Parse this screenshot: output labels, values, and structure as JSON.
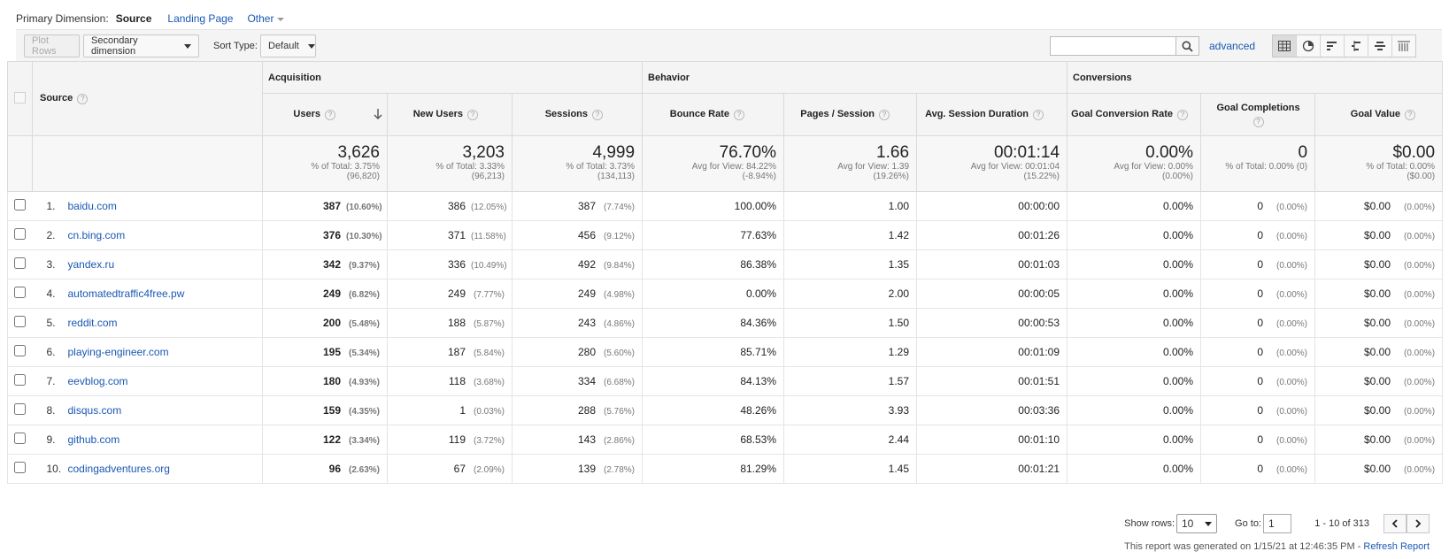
{
  "dimension": {
    "label": "Primary Dimension:",
    "current": "Source",
    "options": [
      "Landing Page",
      "Other"
    ]
  },
  "toolbar": {
    "plot_rows": "Plot Rows",
    "secondary_dimension": "Secondary dimension",
    "sort_type_label": "Sort Type:",
    "sort_type_value": "Default",
    "search_value": "",
    "advanced": "advanced"
  },
  "table": {
    "source_header": "Source",
    "groups": {
      "acquisition": "Acquisition",
      "behavior": "Behavior",
      "conversions": "Conversions"
    },
    "metrics": {
      "users": "Users",
      "new_users": "New Users",
      "sessions": "Sessions",
      "bounce_rate": "Bounce Rate",
      "pages_session": "Pages / Session",
      "avg_session": "Avg. Session Duration",
      "goal_conv_rate": "Goal Conversion Rate",
      "goal_completions": "Goal Completions",
      "goal_value": "Goal Value"
    },
    "totals": {
      "users": {
        "value": "3,626",
        "sub1": "% of Total: 3.75%",
        "sub2": "(96,820)"
      },
      "new_users": {
        "value": "3,203",
        "sub1": "% of Total: 3.33%",
        "sub2": "(96,213)"
      },
      "sessions": {
        "value": "4,999",
        "sub1": "% of Total: 3.73%",
        "sub2": "(134,113)"
      },
      "bounce_rate": {
        "value": "76.70%",
        "sub1": "Avg for View: 84.22%",
        "sub2": "(-8.94%)"
      },
      "pages_session": {
        "value": "1.66",
        "sub1": "Avg for View: 1.39",
        "sub2": "(19.26%)"
      },
      "avg_session": {
        "value": "00:01:14",
        "sub1": "Avg for View: 00:01:04",
        "sub2": "(15.22%)"
      },
      "goal_conv_rate": {
        "value": "0.00%",
        "sub1": "Avg for View: 0.00%",
        "sub2": "(0.00%)"
      },
      "goal_completions": {
        "value": "0",
        "sub1": "% of Total: 0.00% (0)",
        "sub2": ""
      },
      "goal_value": {
        "value": "$0.00",
        "sub1": "% of Total: 0.00%",
        "sub2": "($0.00)"
      }
    },
    "rows": [
      {
        "idx": "1.",
        "source": "baidu.com",
        "users": "387",
        "users_pct": "(10.60%)",
        "new_users": "386",
        "new_users_pct": "(12.05%)",
        "sessions": "387",
        "sessions_pct": "(7.74%)",
        "bounce": "100.00%",
        "pps": "1.00",
        "dur": "00:00:00",
        "gcr": "0.00%",
        "gc": "0",
        "gc_pct": "(0.00%)",
        "gv": "$0.00",
        "gv_pct": "(0.00%)"
      },
      {
        "idx": "2.",
        "source": "cn.bing.com",
        "users": "376",
        "users_pct": "(10.30%)",
        "new_users": "371",
        "new_users_pct": "(11.58%)",
        "sessions": "456",
        "sessions_pct": "(9.12%)",
        "bounce": "77.63%",
        "pps": "1.42",
        "dur": "00:01:26",
        "gcr": "0.00%",
        "gc": "0",
        "gc_pct": "(0.00%)",
        "gv": "$0.00",
        "gv_pct": "(0.00%)"
      },
      {
        "idx": "3.",
        "source": "yandex.ru",
        "users": "342",
        "users_pct": "(9.37%)",
        "new_users": "336",
        "new_users_pct": "(10.49%)",
        "sessions": "492",
        "sessions_pct": "(9.84%)",
        "bounce": "86.38%",
        "pps": "1.35",
        "dur": "00:01:03",
        "gcr": "0.00%",
        "gc": "0",
        "gc_pct": "(0.00%)",
        "gv": "$0.00",
        "gv_pct": "(0.00%)"
      },
      {
        "idx": "4.",
        "source": "automatedtraffic4free.pw",
        "users": "249",
        "users_pct": "(6.82%)",
        "new_users": "249",
        "new_users_pct": "(7.77%)",
        "sessions": "249",
        "sessions_pct": "(4.98%)",
        "bounce": "0.00%",
        "pps": "2.00",
        "dur": "00:00:05",
        "gcr": "0.00%",
        "gc": "0",
        "gc_pct": "(0.00%)",
        "gv": "$0.00",
        "gv_pct": "(0.00%)"
      },
      {
        "idx": "5.",
        "source": "reddit.com",
        "users": "200",
        "users_pct": "(5.48%)",
        "new_users": "188",
        "new_users_pct": "(5.87%)",
        "sessions": "243",
        "sessions_pct": "(4.86%)",
        "bounce": "84.36%",
        "pps": "1.50",
        "dur": "00:00:53",
        "gcr": "0.00%",
        "gc": "0",
        "gc_pct": "(0.00%)",
        "gv": "$0.00",
        "gv_pct": "(0.00%)"
      },
      {
        "idx": "6.",
        "source": "playing-engineer.com",
        "users": "195",
        "users_pct": "(5.34%)",
        "new_users": "187",
        "new_users_pct": "(5.84%)",
        "sessions": "280",
        "sessions_pct": "(5.60%)",
        "bounce": "85.71%",
        "pps": "1.29",
        "dur": "00:01:09",
        "gcr": "0.00%",
        "gc": "0",
        "gc_pct": "(0.00%)",
        "gv": "$0.00",
        "gv_pct": "(0.00%)"
      },
      {
        "idx": "7.",
        "source": "eevblog.com",
        "users": "180",
        "users_pct": "(4.93%)",
        "new_users": "118",
        "new_users_pct": "(3.68%)",
        "sessions": "334",
        "sessions_pct": "(6.68%)",
        "bounce": "84.13%",
        "pps": "1.57",
        "dur": "00:01:51",
        "gcr": "0.00%",
        "gc": "0",
        "gc_pct": "(0.00%)",
        "gv": "$0.00",
        "gv_pct": "(0.00%)"
      },
      {
        "idx": "8.",
        "source": "disqus.com",
        "users": "159",
        "users_pct": "(4.35%)",
        "new_users": "1",
        "new_users_pct": "(0.03%)",
        "sessions": "288",
        "sessions_pct": "(5.76%)",
        "bounce": "48.26%",
        "pps": "3.93",
        "dur": "00:03:36",
        "gcr": "0.00%",
        "gc": "0",
        "gc_pct": "(0.00%)",
        "gv": "$0.00",
        "gv_pct": "(0.00%)"
      },
      {
        "idx": "9.",
        "source": "github.com",
        "users": "122",
        "users_pct": "(3.34%)",
        "new_users": "119",
        "new_users_pct": "(3.72%)",
        "sessions": "143",
        "sessions_pct": "(2.86%)",
        "bounce": "68.53%",
        "pps": "2.44",
        "dur": "00:01:10",
        "gcr": "0.00%",
        "gc": "0",
        "gc_pct": "(0.00%)",
        "gv": "$0.00",
        "gv_pct": "(0.00%)"
      },
      {
        "idx": "10.",
        "source": "codingadventures.org",
        "users": "96",
        "users_pct": "(2.63%)",
        "new_users": "67",
        "new_users_pct": "(2.09%)",
        "sessions": "139",
        "sessions_pct": "(2.78%)",
        "bounce": "81.29%",
        "pps": "1.45",
        "dur": "00:01:21",
        "gcr": "0.00%",
        "gc": "0",
        "gc_pct": "(0.00%)",
        "gv": "$0.00",
        "gv_pct": "(0.00%)"
      }
    ]
  },
  "footer": {
    "show_rows_label": "Show rows:",
    "show_rows_value": "10",
    "goto_label": "Go to:",
    "goto_value": "1",
    "range": "1 - 10 of 313",
    "generated": "This report was generated on 1/15/21 at 12:46:35 PM - ",
    "refresh": "Refresh Report"
  },
  "icons": {
    "search": "search-icon",
    "sort": "sort-down-arrow-icon",
    "views": [
      "table-view-icon",
      "pie-view-icon",
      "performance-view-icon",
      "comparison-view-icon",
      "term-cloud-icon",
      "pivot-view-icon"
    ],
    "pager": [
      "chevron-left-icon",
      "chevron-right-icon"
    ]
  },
  "colors": {
    "link": "#1a58b3",
    "header_bg": "#f4f4f4",
    "border": "#dadada"
  }
}
